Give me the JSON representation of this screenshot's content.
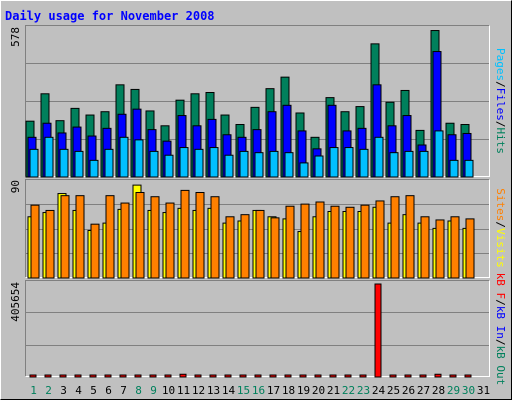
{
  "title": "Daily usage for November 2008",
  "colors": {
    "frame_bg": "#c0c0c0",
    "plot_bg": "#c0c0c0",
    "title": "#0000ff",
    "hits": "#00805c",
    "files": "#0000ff",
    "pages": "#00c0ff",
    "visits": "#ffff00",
    "sites": "#ff8000",
    "kb_in": "#ff0000",
    "weekend_label": "#00805c",
    "weekday_label": "#000000"
  },
  "chart_data": [
    {
      "type": "bar",
      "panel": "hits-files-pages",
      "title": "Daily usage for November 2008",
      "ylabel": "Pages / Files / Hits",
      "ymax_label": "578",
      "ylim": [
        0,
        578
      ],
      "categories": [
        "1",
        "2",
        "3",
        "4",
        "5",
        "6",
        "7",
        "8",
        "9",
        "10",
        "11",
        "12",
        "13",
        "14",
        "15",
        "16",
        "17",
        "18",
        "19",
        "20",
        "21",
        "22",
        "23",
        "24",
        "25",
        "26",
        "27",
        "28",
        "29",
        "30"
      ],
      "series": [
        {
          "name": "Hits",
          "values": [
            218,
            325,
            220,
            268,
            242,
            255,
            360,
            342,
            258,
            200,
            300,
            325,
            330,
            242,
            205,
            272,
            345,
            390,
            250,
            155,
            310,
            255,
            275,
            520,
            292,
            338,
            182,
            572,
            210,
            205
          ]
        },
        {
          "name": "Files",
          "values": [
            155,
            210,
            172,
            195,
            160,
            190,
            245,
            265,
            185,
            140,
            240,
            200,
            225,
            165,
            155,
            185,
            255,
            280,
            180,
            110,
            280,
            180,
            190,
            360,
            200,
            240,
            125,
            490,
            165,
            170
          ]
        },
        {
          "name": "Pages",
          "values": [
            108,
            155,
            108,
            100,
            65,
            108,
            155,
            145,
            100,
            85,
            115,
            108,
            115,
            85,
            100,
            95,
            100,
            95,
            55,
            82,
            115,
            115,
            108,
            155,
            95,
            100,
            100,
            180,
            65,
            65
          ]
        }
      ]
    },
    {
      "type": "bar",
      "panel": "visits-sites",
      "ylabel": "Sites / Visits",
      "ymax_label": "90",
      "ylim": [
        0,
        90
      ],
      "categories": [
        "1",
        "2",
        "3",
        "4",
        "5",
        "6",
        "7",
        "8",
        "9",
        "10",
        "11",
        "12",
        "13",
        "14",
        "15",
        "16",
        "17",
        "18",
        "19",
        "20",
        "21",
        "22",
        "23",
        "24",
        "25",
        "26",
        "27",
        "28",
        "29",
        "30"
      ],
      "series": [
        {
          "name": "Visits",
          "values": [
            58,
            62,
            80,
            64,
            45,
            52,
            65,
            88,
            64,
            62,
            66,
            64,
            66,
            52,
            54,
            64,
            58,
            56,
            44,
            58,
            63,
            63,
            63,
            67,
            52,
            60,
            52,
            47,
            54,
            47
          ]
        },
        {
          "name": "Sites",
          "values": [
            69,
            64,
            78,
            78,
            51,
            78,
            71,
            81,
            77,
            71,
            83,
            81,
            77,
            58,
            60,
            64,
            57,
            68,
            70,
            72,
            68,
            67,
            69,
            73,
            77,
            78,
            58,
            55,
            58,
            56
          ]
        }
      ]
    },
    {
      "type": "bar",
      "panel": "kb-in",
      "ylabel": "kB F / kB In / kB Out",
      "ymax_label": "405654",
      "ylim": [
        0,
        405654
      ],
      "categories": [
        "1",
        "2",
        "3",
        "4",
        "5",
        "6",
        "7",
        "8",
        "9",
        "10",
        "11",
        "12",
        "13",
        "14",
        "15",
        "16",
        "17",
        "18",
        "19",
        "20",
        "21",
        "22",
        "23",
        "24",
        "25",
        "26",
        "27",
        "28",
        "29",
        "30"
      ],
      "series": [
        {
          "name": "kB In",
          "values": [
            3500,
            3500,
            3500,
            3500,
            3500,
            3500,
            3500,
            3500,
            3500,
            3500,
            12000,
            3500,
            3500,
            3500,
            3500,
            3500,
            3500,
            3500,
            3500,
            3500,
            3500,
            3500,
            3500,
            405654,
            3500,
            3500,
            3500,
            12000,
            3500,
            3500
          ]
        }
      ]
    }
  ],
  "day_labels": [
    "1",
    "2",
    "3",
    "4",
    "5",
    "6",
    "7",
    "8",
    "9",
    "10",
    "11",
    "12",
    "13",
    "14",
    "15",
    "16",
    "17",
    "18",
    "19",
    "20",
    "21",
    "22",
    "23",
    "24",
    "25",
    "26",
    "27",
    "28",
    "29",
    "30",
    "31"
  ],
  "weekend_days": [
    1,
    2,
    8,
    9,
    15,
    16,
    22,
    23,
    29,
    30
  ],
  "right_legends": {
    "top": [
      {
        "text": "Pages",
        "color": "#00c0ff"
      },
      {
        "text": "/",
        "color": "#000000"
      },
      {
        "text": "Files",
        "color": "#0000ff"
      },
      {
        "text": "/",
        "color": "#000000"
      },
      {
        "text": "Hits",
        "color": "#00805c"
      }
    ],
    "mid": [
      {
        "text": "Sites",
        "color": "#ff8000"
      },
      {
        "text": "/",
        "color": "#000000"
      },
      {
        "text": "Visits",
        "color": "#ffff00"
      }
    ],
    "bot": [
      {
        "text": "kB F",
        "color": "#ff0000"
      },
      {
        "text": "/",
        "color": "#000000"
      },
      {
        "text": "kB In",
        "color": "#0000ff"
      },
      {
        "text": "/",
        "color": "#000000"
      },
      {
        "text": "kB Out",
        "color": "#00805c"
      }
    ]
  }
}
